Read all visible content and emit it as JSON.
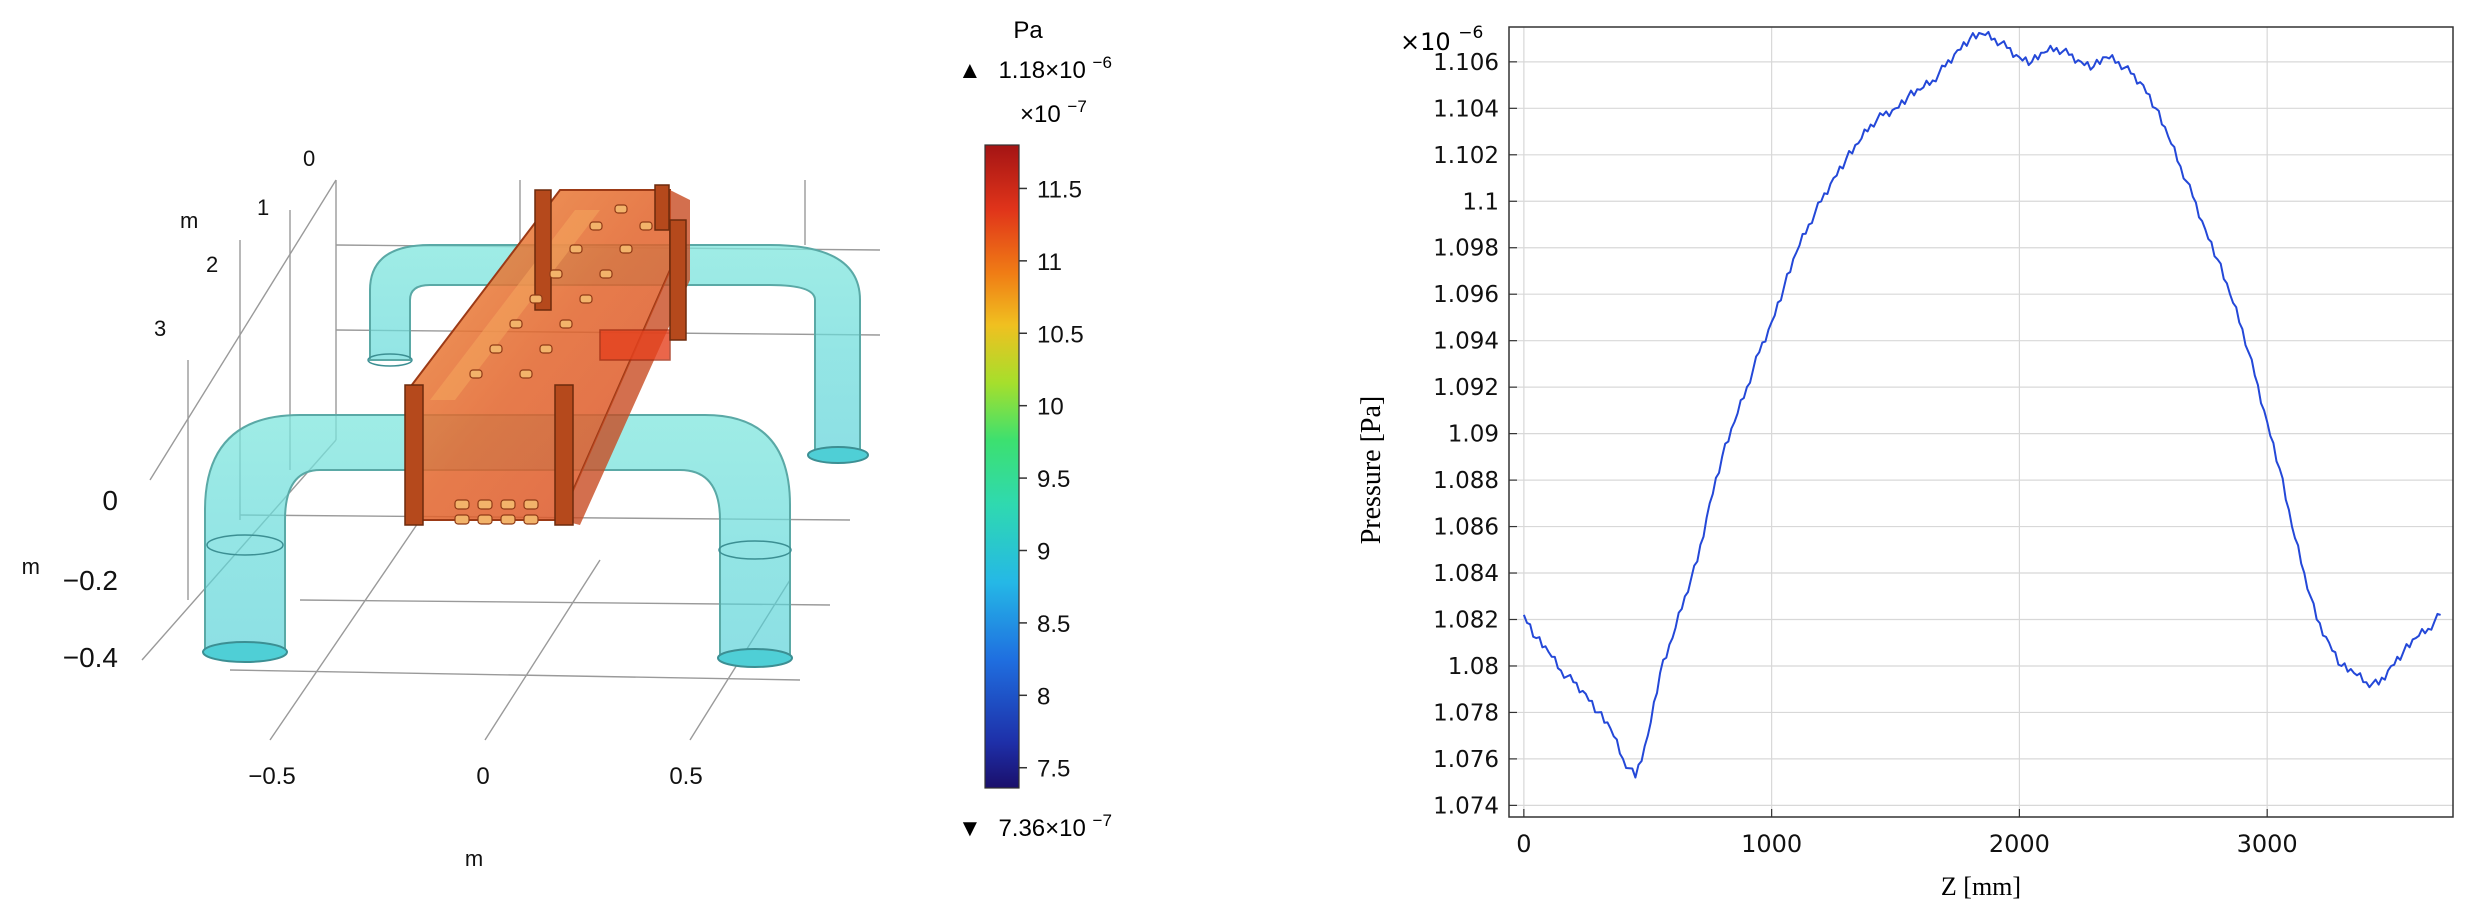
{
  "scene": {
    "axes": {
      "depth_ticks": [
        "0",
        "1",
        "2",
        "3"
      ],
      "depth_unit": "m",
      "vertical_ticks": [
        "0",
        "−0.2",
        "−0.4"
      ],
      "vertical_unit": "m",
      "horizontal_ticks": [
        "−0.5",
        "0",
        "0.5"
      ],
      "horizontal_unit": "m"
    },
    "colorbar": {
      "unit": "Pa",
      "max_symbol": "▲",
      "max_mantissa": "1.18×10",
      "max_exp": "−6",
      "min_symbol": "▼",
      "min_mantissa": "7.36×10",
      "min_exp": "−7",
      "scale_mantissa": "×10",
      "scale_exp": "−7",
      "ticks": [
        "11.5",
        "11",
        "10.5",
        "10",
        "9.5",
        "9",
        "8.5",
        "8",
        "7.5"
      ],
      "range": [
        7.36,
        11.8
      ]
    },
    "colors": {
      "pipe": "#55d8cf",
      "box": "#e2642b",
      "flange": "#b5491c"
    }
  },
  "chart_data": {
    "type": "line",
    "title": "",
    "xlabel": "Z [mm]",
    "ylabel": "Pressure [Pa]",
    "y_multiplier": "×10",
    "y_multiplier_exp": "−6",
    "xlim": [
      -60,
      3750
    ],
    "ylim": [
      1.0735,
      1.1075
    ],
    "x_ticks": [
      "0",
      "1000",
      "2000",
      "3000"
    ],
    "y_ticks": [
      "1.074",
      "1.076",
      "1.078",
      "1.08",
      "1.082",
      "1.084",
      "1.086",
      "1.088",
      "1.09",
      "1.092",
      "1.094",
      "1.096",
      "1.098",
      "1.1",
      "1.102",
      "1.104",
      "1.106"
    ],
    "grid": true,
    "color": "#2448d8",
    "series": [
      {
        "x": [
          0,
          50,
          100,
          150,
          200,
          250,
          300,
          350,
          400,
          450,
          500,
          550,
          600,
          650,
          700,
          750,
          800,
          850,
          900,
          950,
          1000,
          1050,
          1100,
          1150,
          1200,
          1250,
          1300,
          1350,
          1400,
          1450,
          1500,
          1550,
          1600,
          1650,
          1700,
          1750,
          1800,
          1850,
          1900,
          1950,
          2000,
          2050,
          2100,
          2150,
          2200,
          2250,
          2300,
          2350,
          2400,
          2450,
          2500,
          2550,
          2600,
          2650,
          2700,
          2750,
          2800,
          2850,
          2900,
          2950,
          3000,
          3050,
          3100,
          3150,
          3200,
          3250,
          3300,
          3350,
          3400,
          3450,
          3500,
          3550,
          3600,
          3650,
          3700
        ],
        "y": [
          1.0822,
          1.0812,
          1.0806,
          1.0798,
          1.0793,
          1.0788,
          1.078,
          1.0773,
          1.076,
          1.0752,
          1.077,
          1.0797,
          1.0812,
          1.083,
          1.0845,
          1.087,
          1.089,
          1.0905,
          1.092,
          1.0935,
          1.0948,
          1.0963,
          1.0978,
          1.099,
          1.1,
          1.101,
          1.1018,
          1.1025,
          1.1033,
          1.1037,
          1.104,
          1.1045,
          1.1048,
          1.1052,
          1.1058,
          1.1065,
          1.107,
          1.1072,
          1.107,
          1.1066,
          1.1062,
          1.106,
          1.1064,
          1.1066,
          1.1063,
          1.106,
          1.1058,
          1.1062,
          1.106,
          1.1055,
          1.105,
          1.104,
          1.1028,
          1.1015,
          1.1002,
          1.0988,
          1.0975,
          1.096,
          1.0945,
          1.0925,
          1.0905,
          1.0885,
          1.086,
          1.084,
          1.082,
          1.081,
          1.08,
          1.0797,
          1.0793,
          1.0792,
          1.08,
          1.0806,
          1.0812,
          1.0816,
          1.0822
        ]
      }
    ]
  }
}
